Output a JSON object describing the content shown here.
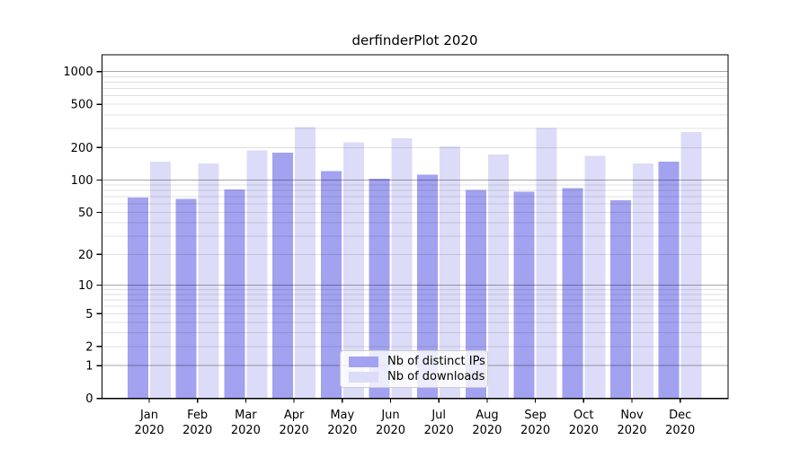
{
  "chart_data": {
    "type": "bar",
    "title": "derfinderPlot 2020",
    "categories": [
      "Jan",
      "Feb",
      "Mar",
      "Apr",
      "May",
      "Jun",
      "Jul",
      "Aug",
      "Sep",
      "Oct",
      "Nov",
      "Dec"
    ],
    "category_year": "2020",
    "series": [
      {
        "name": "Nb of distinct IPs",
        "color": "#a2a2f0",
        "values": [
          69,
          67,
          82,
          179,
          121,
          103,
          112,
          81,
          78,
          84,
          65,
          148
        ]
      },
      {
        "name": "Nb of downloads",
        "color": "#dcdcf8",
        "values": [
          148,
          143,
          189,
          309,
          224,
          244,
          206,
          172,
          303,
          168,
          143,
          278
        ]
      }
    ],
    "yscale": "log10(value+1)",
    "ylim": [
      0,
      1430
    ],
    "yticks": [
      0,
      1,
      2,
      5,
      10,
      20,
      50,
      100,
      200,
      500,
      1000
    ],
    "major_gridlines": [
      1,
      10,
      100,
      1000
    ],
    "minor_gridlines": [
      2,
      3,
      4,
      5,
      6,
      7,
      8,
      9,
      20,
      30,
      40,
      50,
      60,
      70,
      80,
      90,
      200,
      300,
      400,
      500,
      600,
      700,
      800,
      900
    ],
    "grid": true,
    "legend_position": "lower center",
    "colors": {
      "bar_dark": "#a2a2f0",
      "bar_light": "#dcdcf8",
      "major_grid": "#a5a5a5",
      "minor_grid": "#e0e0e0",
      "axis": "#000000",
      "text": "#000000",
      "background": "#ffffff"
    }
  }
}
